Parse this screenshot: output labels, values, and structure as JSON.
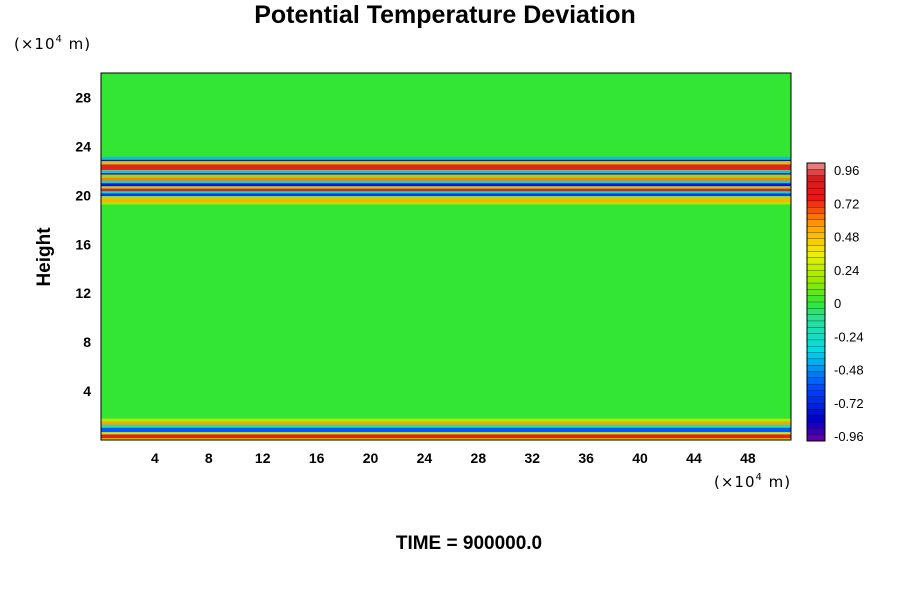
{
  "chart_data": {
    "type": "heatmap",
    "title": "Potential Temperature Deviation",
    "ylabel": "Height",
    "y_unit": {
      "prefix": "(×10",
      "exponent": "4",
      "suffix": " m)"
    },
    "x_unit": {
      "prefix": "(×10",
      "exponent": "4",
      "suffix": " m)"
    },
    "xlim": [
      0,
      51.2
    ],
    "ylim": [
      0,
      30
    ],
    "x_ticks": [
      4,
      8,
      12,
      16,
      20,
      24,
      28,
      32,
      36,
      40,
      44,
      48
    ],
    "y_ticks": [
      4,
      8,
      12,
      16,
      20,
      24,
      28
    ],
    "colorbar": {
      "range": [
        -1.0,
        1.0
      ],
      "labels": [
        "0.96",
        "0.72",
        "0.48",
        "0.24",
        "0",
        "-0.24",
        "-0.48",
        "-0.72",
        "-0.96"
      ]
    },
    "bands": [
      {
        "y_center": 22.7,
        "amplitude": -0.9,
        "thickness": 0.45
      },
      {
        "y_center": 22.3,
        "amplitude": 0.85,
        "thickness": 0.5
      },
      {
        "y_center": 21.6,
        "amplitude": -0.9,
        "thickness": 0.45
      },
      {
        "y_center": 21.2,
        "amplitude": 0.6,
        "thickness": 0.5
      },
      {
        "y_center": 20.8,
        "amplitude": -0.8,
        "thickness": 0.4
      },
      {
        "y_center": 20.4,
        "amplitude": 0.9,
        "thickness": 0.35
      },
      {
        "y_center": 20.0,
        "amplitude": -0.7,
        "thickness": 0.35
      },
      {
        "y_center": 19.6,
        "amplitude": 0.5,
        "thickness": 0.35
      },
      {
        "y_center": 1.3,
        "amplitude": 0.55,
        "thickness": 0.45
      },
      {
        "y_center": 0.8,
        "amplitude": -0.6,
        "thickness": 0.45
      },
      {
        "y_center": 0.3,
        "amplitude": 0.85,
        "thickness": 0.35
      }
    ]
  },
  "footer": {
    "time_label": "TIME = 900000.0"
  }
}
